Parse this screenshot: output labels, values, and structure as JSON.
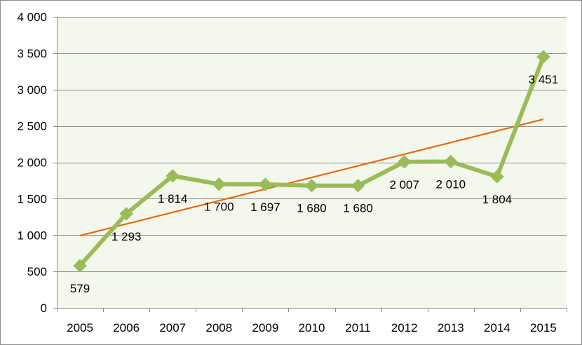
{
  "chart_data": {
    "type": "line",
    "title": "",
    "xlabel": "",
    "ylabel": "",
    "categories": [
      "2005",
      "2006",
      "2007",
      "2008",
      "2009",
      "2010",
      "2011",
      "2012",
      "2013",
      "2014",
      "2015"
    ],
    "series": [
      {
        "values": [
          579,
          1293,
          1814,
          1700,
          1697,
          1680,
          1680,
          2007,
          2010,
          1804,
          3451
        ],
        "data_labels": [
          "579",
          "1 293",
          "1 814",
          "1 700",
          "1 697",
          "1 680",
          "1 680",
          "2 007",
          "2 010",
          "1 804",
          "3 451"
        ],
        "color": "#9bbb59",
        "marker": "diamond"
      }
    ],
    "trendline": {
      "type": "linear",
      "color": "#e46c0a"
    },
    "ylim": [
      0,
      4000
    ],
    "yticks": [
      0,
      500,
      1000,
      1500,
      2000,
      2500,
      3000,
      3500,
      4000
    ],
    "ytick_labels": [
      "0",
      "500",
      "1 000",
      "1 500",
      "2 000",
      "2 500",
      "3 000",
      "3 500",
      "4 000"
    ],
    "grid": true,
    "legend": "none",
    "plot_background": "#f3f7ec",
    "gridline_color": "#8c8c8c"
  }
}
